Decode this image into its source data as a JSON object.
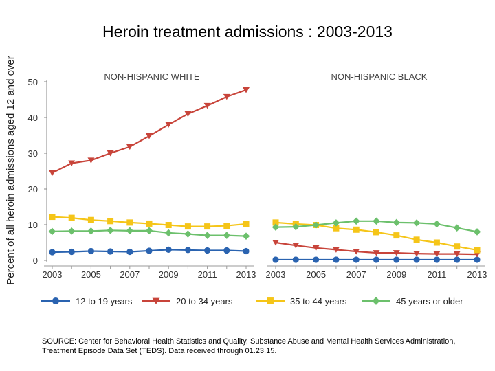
{
  "title": "Heroin treatment admissions : 2003-2013",
  "source": "SOURCE: Center for Behavioral Health Statistics and Quality, Substance Abuse and Mental Health Services Administration, Treatment Episode Data Set (TEDS). Data received through 01.23.15.",
  "chart_data": {
    "type": "line",
    "ylabel": "Percent of all heroin admissions aged 12 and over",
    "ylim": [
      0,
      50
    ],
    "yticks": [
      "0",
      "10",
      "20",
      "30",
      "40",
      "50"
    ],
    "x": [
      2003,
      2004,
      2005,
      2006,
      2007,
      2008,
      2009,
      2010,
      2011,
      2012,
      2013
    ],
    "xticks": [
      "2003",
      "2005",
      "2007",
      "2009",
      "2011",
      "2013"
    ],
    "legend": [
      {
        "name": "12 to 19 years",
        "color": "#2a63b0",
        "marker": "circle"
      },
      {
        "name": "20 to 34 years",
        "color": "#c8443a",
        "marker": "triangle-down"
      },
      {
        "name": "35 to 44 years",
        "color": "#f5c518",
        "marker": "square"
      },
      {
        "name": "45 years or older",
        "color": "#6cc06c",
        "marker": "diamond"
      }
    ],
    "panels": [
      {
        "title": "NON-HISPANIC WHITE",
        "series": [
          {
            "name": "12 to 19 years",
            "values": [
              2.3,
              2.4,
              2.6,
              2.5,
              2.4,
              2.7,
              3.0,
              2.9,
              2.8,
              2.8,
              2.6
            ]
          },
          {
            "name": "20 to 34 years",
            "values": [
              24.5,
              27.2,
              28.0,
              30.0,
              31.8,
              34.8,
              38.0,
              41.0,
              43.3,
              45.8,
              47.7
            ]
          },
          {
            "name": "35 to 44 years",
            "values": [
              12.2,
              11.9,
              11.3,
              11.0,
              10.6,
              10.3,
              9.9,
              9.5,
              9.5,
              9.7,
              10.2
            ]
          },
          {
            "name": "45 years or older",
            "values": [
              8.1,
              8.2,
              8.2,
              8.4,
              8.3,
              8.3,
              7.7,
              7.4,
              7.0,
              7.0,
              6.8
            ]
          }
        ]
      },
      {
        "title": "NON-HISPANIC BLACK",
        "series": [
          {
            "name": "12 to 19 years",
            "values": [
              0.2,
              0.2,
              0.2,
              0.2,
              0.2,
              0.2,
              0.2,
              0.2,
              0.2,
              0.2,
              0.2
            ]
          },
          {
            "name": "20 to 34 years",
            "values": [
              5.0,
              4.2,
              3.5,
              3.0,
              2.5,
              2.1,
              2.1,
              1.9,
              1.8,
              1.8,
              1.7
            ]
          },
          {
            "name": "35 to 44 years",
            "values": [
              10.6,
              10.2,
              9.9,
              9.0,
              8.6,
              7.9,
              7.0,
              5.8,
              5.0,
              3.9,
              2.9
            ]
          },
          {
            "name": "45 years or older",
            "values": [
              9.3,
              9.4,
              9.9,
              10.5,
              11.0,
              11.0,
              10.6,
              10.5,
              10.2,
              9.1,
              8.0
            ]
          }
        ]
      }
    ]
  }
}
